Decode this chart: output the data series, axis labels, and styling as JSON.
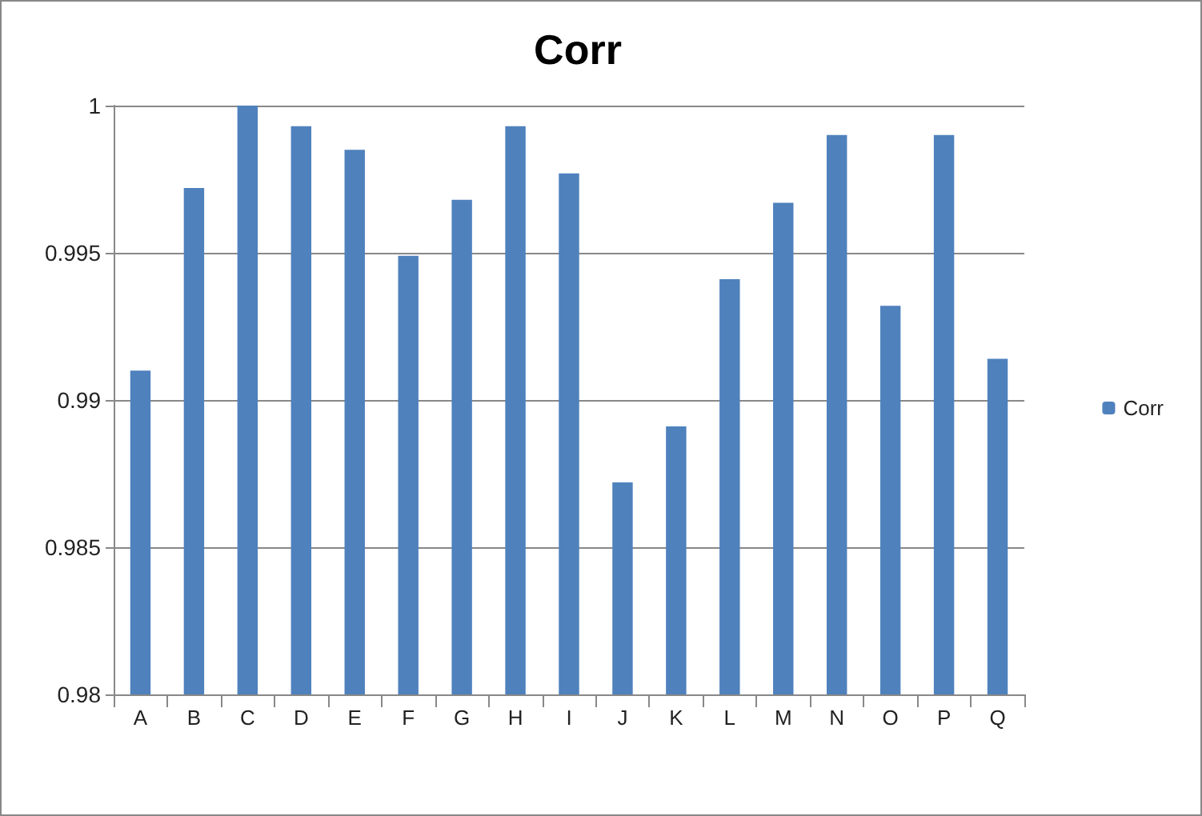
{
  "chart_data": {
    "type": "bar",
    "title": "Corr",
    "categories": [
      "A",
      "B",
      "C",
      "D",
      "E",
      "F",
      "G",
      "H",
      "I",
      "J",
      "K",
      "L",
      "M",
      "N",
      "O",
      "P",
      "Q"
    ],
    "series": [
      {
        "name": "Corr",
        "color": "#4f81bd",
        "values": [
          0.991,
          0.9972,
          1.0,
          0.9993,
          0.9985,
          0.9949,
          0.9968,
          0.9993,
          0.9977,
          0.9872,
          0.9891,
          0.9941,
          0.9967,
          0.999,
          0.9932,
          0.999,
          0.9914
        ]
      }
    ],
    "ylim": [
      0.98,
      1
    ],
    "yticks": [
      0.98,
      0.985,
      0.99,
      0.995,
      1
    ],
    "grid": "y",
    "legend": "right"
  }
}
